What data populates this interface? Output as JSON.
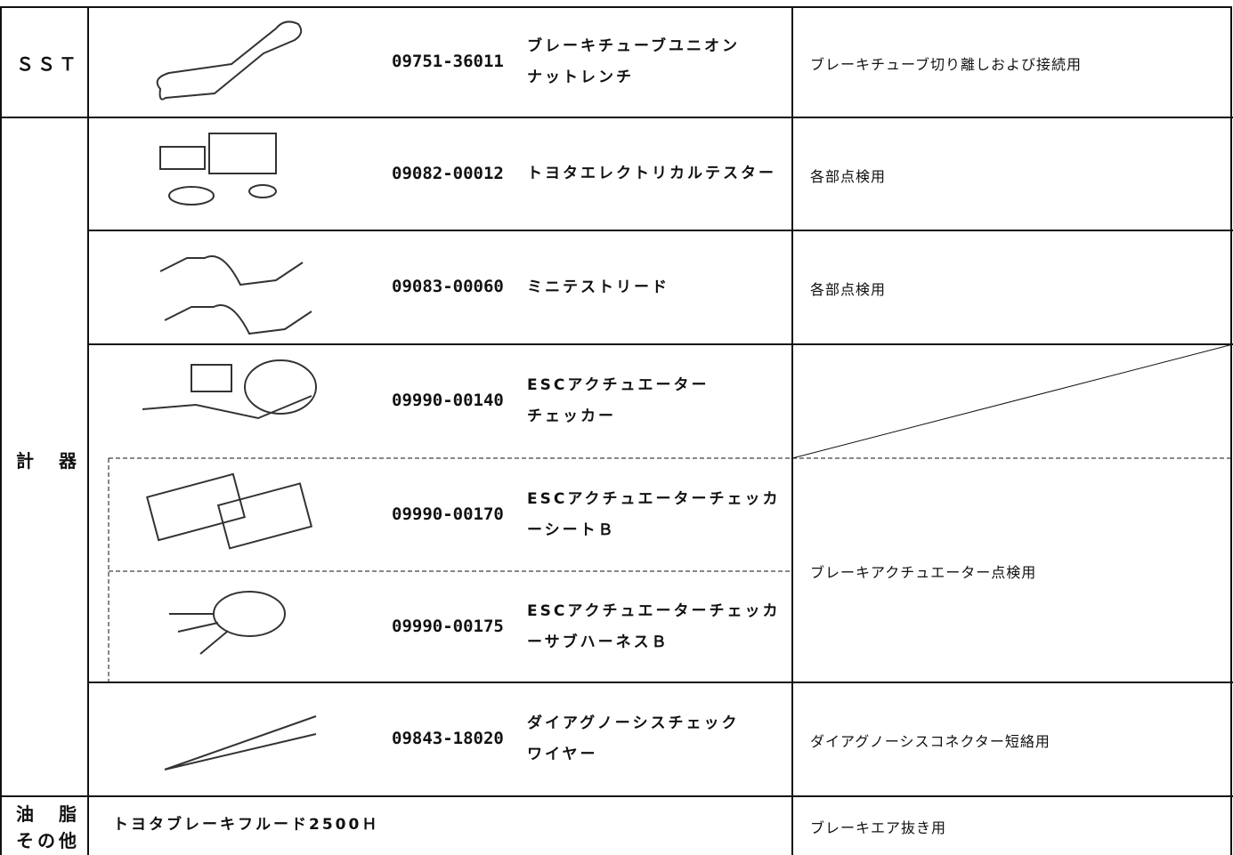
{
  "categories": {
    "sst": "ＳＳＴ",
    "meters": "計　器",
    "grease": [
      "油　脂",
      "その他"
    ]
  },
  "items": [
    {
      "part_no": "09751-36011",
      "name": [
        "ブレーキチューブユニオン",
        "ナットレンチ"
      ],
      "usage": "ブレーキチューブ切り離しおよび接続用"
    },
    {
      "part_no": "09082-00012",
      "name": [
        "トヨタエレクトリカルテスター"
      ],
      "usage": "各部点検用"
    },
    {
      "part_no": "09083-00060",
      "name": [
        "ミニテストリード"
      ],
      "usage": "各部点検用"
    },
    {
      "part_no": "09990-00140",
      "name": [
        "ESCアクチュエーター",
        "チェッカー"
      ]
    },
    {
      "part_no": "09990-00170",
      "name": [
        "ESCアクチュエーターチェッカ",
        "ーシートＢ"
      ]
    },
    {
      "part_no": "09990-00175",
      "name": [
        "ESCアクチュエーターチェッカ",
        "ーサブハーネスＢ"
      ]
    },
    {
      "part_no": "09843-18020",
      "name": [
        "ダイアグノーシスチェック",
        "ワイヤー"
      ],
      "usage": "ダイアグノーシスコネクター短絡用"
    }
  ],
  "shared_usage": "ブレーキアクチュエーター点検用",
  "fluid": {
    "name": "トヨタブレーキフルード2500Ｈ",
    "usage": "ブレーキエア抜き用"
  }
}
